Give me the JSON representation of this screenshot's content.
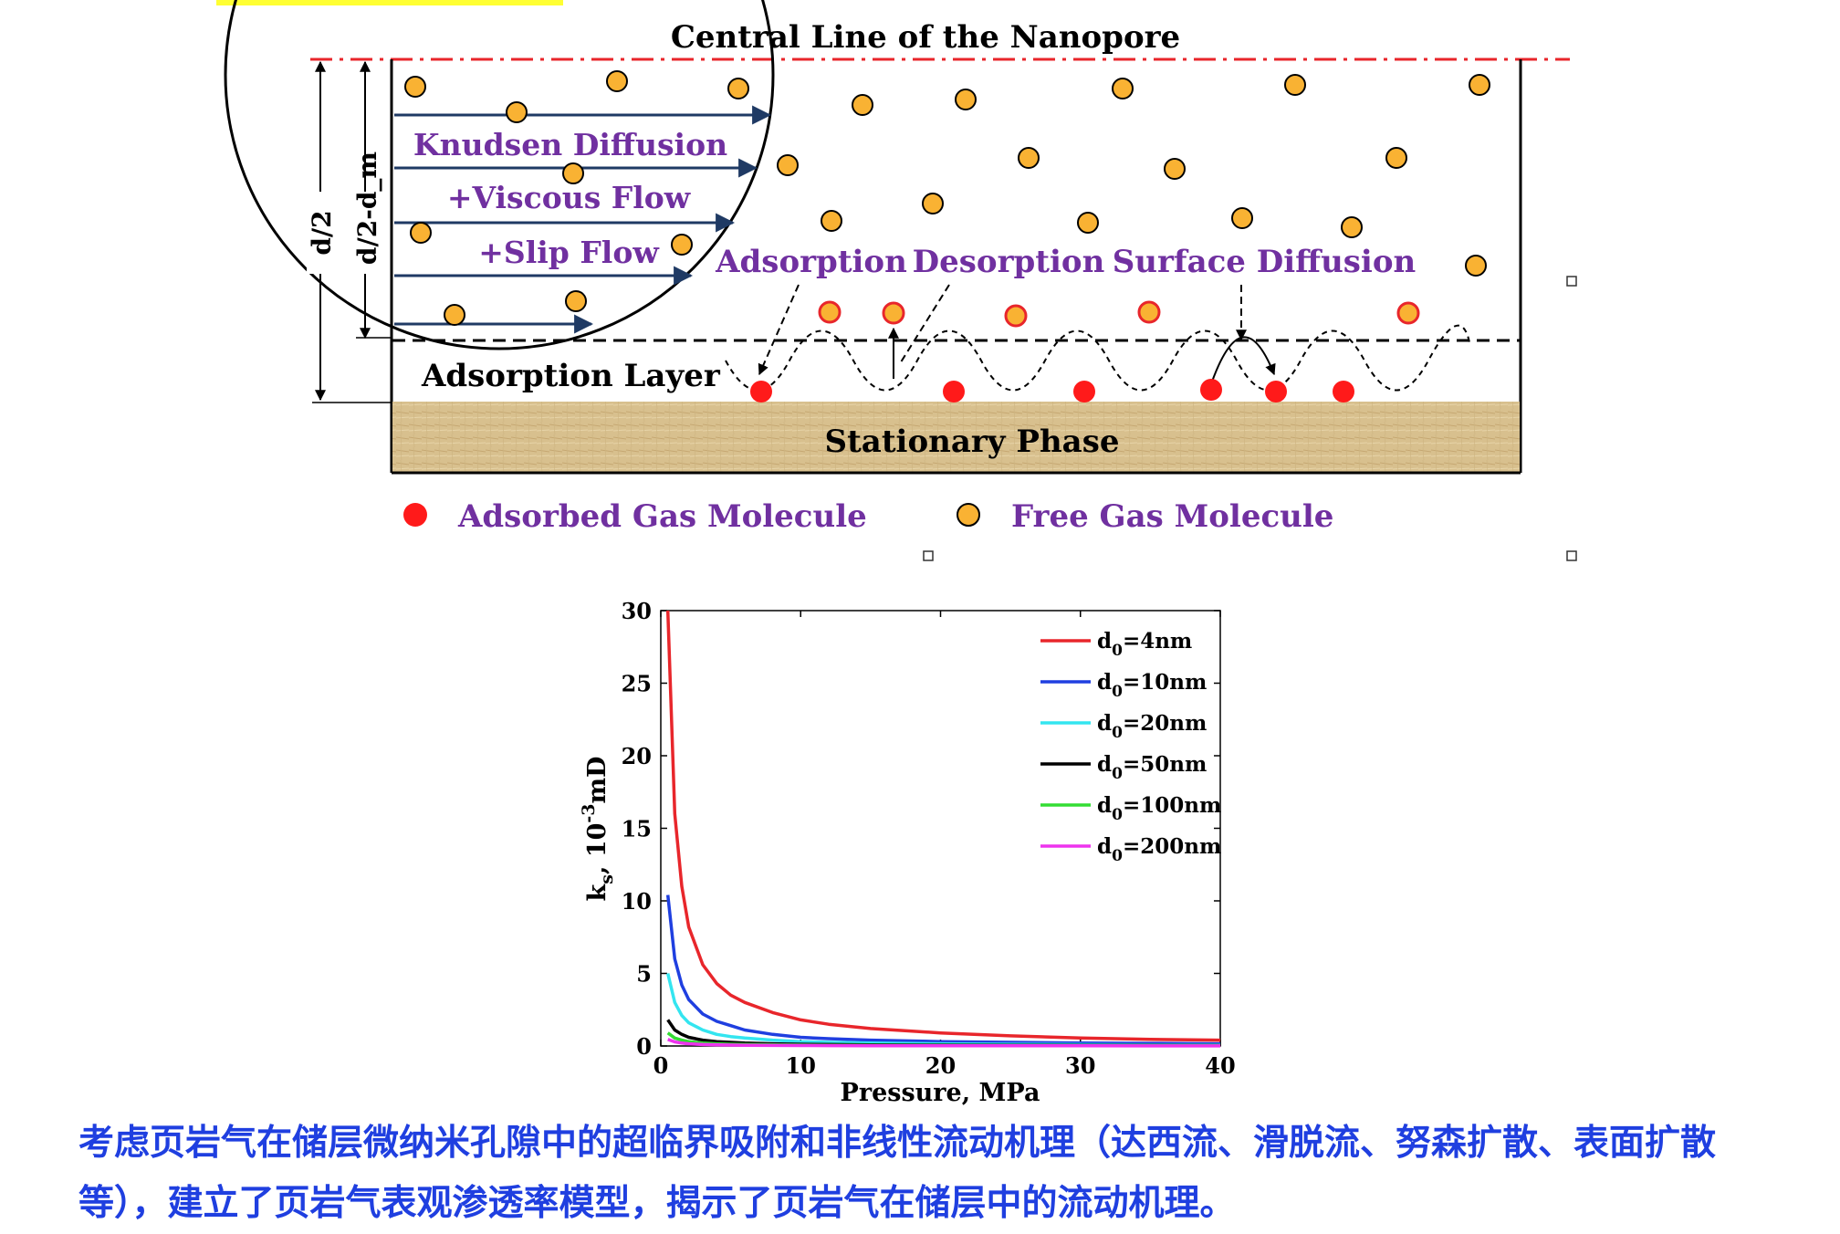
{
  "diagram": {
    "central_line_label": "Central Line of the Nanopore",
    "flow_labels": [
      "Knudsen Diffusion",
      "+Viscous Flow",
      "+Slip Flow"
    ],
    "process_labels": [
      "Adsorption",
      "Desorption",
      "Surface Diffusion"
    ],
    "adsorption_layer_label": "Adsorption Layer",
    "stationary_phase_label": "Stationary Phase",
    "dimension_labels": [
      "d/2",
      "d/2-d_m"
    ],
    "legend": [
      "Adsorbed Gas Molecule",
      "Free Gas Molecule"
    ],
    "colors": {
      "adsorbed": "#ff1a1a",
      "free": "#f9b233",
      "label": "#7030a0",
      "central_line": "#e8262b",
      "stationary_phase": "#d7bf8c"
    }
  },
  "chart_data": {
    "type": "line",
    "title": "",
    "xlabel": "Pressure, MPa",
    "ylabel": "k_s, 10^-3 mD",
    "xlim": [
      0,
      40
    ],
    "ylim": [
      0,
      30
    ],
    "xticks": [
      "0",
      "10",
      "20",
      "30",
      "40"
    ],
    "yticks": [
      "0",
      "5",
      "10",
      "15",
      "20",
      "25",
      "30"
    ],
    "legend_position": "top-right",
    "grid": false,
    "x": [
      0.5,
      1,
      1.5,
      2,
      3,
      4,
      5,
      6,
      8,
      10,
      12,
      15,
      20,
      25,
      30,
      35,
      40
    ],
    "series": [
      {
        "name": "d0=4nm",
        "legend_main": "d",
        "legend_sub": "0",
        "legend_tail": "=4nm",
        "color": "#e8262b",
        "values": [
          30,
          16,
          11,
          8.2,
          5.6,
          4.3,
          3.5,
          3.0,
          2.3,
          1.8,
          1.5,
          1.2,
          0.9,
          0.7,
          0.55,
          0.45,
          0.4
        ]
      },
      {
        "name": "d0=10nm",
        "legend_main": "d",
        "legend_sub": "0",
        "legend_tail": "=10nm",
        "color": "#1f3fe0",
        "values": [
          10.4,
          6.0,
          4.2,
          3.2,
          2.2,
          1.7,
          1.4,
          1.1,
          0.8,
          0.6,
          0.5,
          0.4,
          0.3,
          0.25,
          0.2,
          0.18,
          0.15
        ]
      },
      {
        "name": "d0=20nm",
        "legend_main": "d",
        "legend_sub": "0",
        "legend_tail": "=20nm",
        "color": "#33e5f0",
        "values": [
          5.0,
          3.0,
          2.1,
          1.6,
          1.1,
          0.8,
          0.65,
          0.55,
          0.4,
          0.3,
          0.25,
          0.2,
          0.15,
          0.12,
          0.1,
          0.08,
          0.07
        ]
      },
      {
        "name": "d0=50nm",
        "legend_main": "d",
        "legend_sub": "0",
        "legend_tail": "=50nm",
        "color": "#000000",
        "values": [
          1.8,
          1.1,
          0.8,
          0.6,
          0.4,
          0.3,
          0.25,
          0.2,
          0.15,
          0.12,
          0.1,
          0.08,
          0.06,
          0.05,
          0.04,
          0.035,
          0.03
        ]
      },
      {
        "name": "d0=100nm",
        "legend_main": "d",
        "legend_sub": "0",
        "legend_tail": "=100nm",
        "color": "#33dd33",
        "values": [
          0.9,
          0.55,
          0.4,
          0.3,
          0.2,
          0.15,
          0.12,
          0.1,
          0.08,
          0.06,
          0.05,
          0.04,
          0.03,
          0.025,
          0.02,
          0.018,
          0.015
        ]
      },
      {
        "name": "d0=200nm",
        "legend_main": "d",
        "legend_sub": "0",
        "legend_tail": "=200nm",
        "color": "#ee33ee",
        "values": [
          0.45,
          0.28,
          0.2,
          0.15,
          0.1,
          0.08,
          0.06,
          0.05,
          0.04,
          0.03,
          0.025,
          0.02,
          0.015,
          0.012,
          0.01,
          0.009,
          0.008
        ]
      }
    ]
  },
  "caption": "考虑页岩气在储层微纳米孔隙中的超临界吸附和非线性流动机理（达西流、滑脱流、努森扩散、表面扩散等），建立了页岩气表观渗透率模型，揭示了页岩气在储层中的流动机理。"
}
